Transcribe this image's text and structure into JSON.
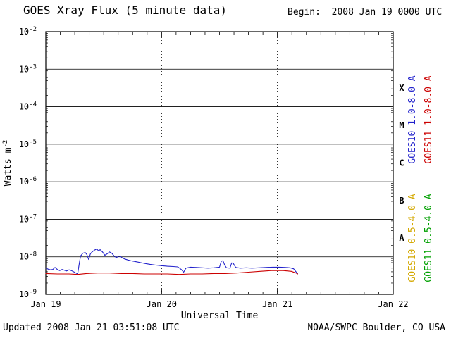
{
  "header": {
    "title": "GOES Xray Flux (5 minute data)",
    "begin_label": "Begin:  2008 Jan 19 0000 UTC"
  },
  "footer": {
    "updated": "Updated 2008 Jan 21 03:51:08 UTC",
    "source": "NOAA/SWPC Boulder, CO USA"
  },
  "colors": {
    "goes10_long": "#2222cc",
    "goes11_long": "#cc0000",
    "goes10_short": "#d4a800",
    "goes11_short": "#00a000",
    "axis": "#000000",
    "background": "#ffffff"
  },
  "chart_data": {
    "type": "line",
    "title": "GOES Xray Flux (5 minute data)",
    "xlabel": "Universal Time",
    "ylabel": "Watts m-2",
    "ylabel_base": "Watts m",
    "ylabel_exponent": "-2",
    "x_range_days": [
      0,
      3
    ],
    "x_ticks": [
      {
        "t": 0,
        "label": "Jan 19"
      },
      {
        "t": 1,
        "label": "Jan 20"
      },
      {
        "t": 2,
        "label": "Jan 21"
      },
      {
        "t": 3,
        "label": "Jan 22"
      }
    ],
    "x_minor_tick_step_days": 0.125,
    "x_day_boundaries_dotted": [
      1,
      2
    ],
    "y_log_range": [
      -9,
      -2
    ],
    "y_tick_exponents": [
      -2,
      -3,
      -4,
      -5,
      -6,
      -7,
      -8,
      -9
    ],
    "grid": {
      "horizontal": "solid-per-decade",
      "vertical": "dotted-at-day-boundaries"
    },
    "flare_classes": [
      {
        "label": "X",
        "center_exponent": -3.5
      },
      {
        "label": "M",
        "center_exponent": -4.5
      },
      {
        "label": "C",
        "center_exponent": -5.5
      },
      {
        "label": "B",
        "center_exponent": -6.5
      },
      {
        "label": "A",
        "center_exponent": -7.5
      }
    ],
    "legend": [
      {
        "label": "GOES10 1.0-8.0 A",
        "color": "#2222cc",
        "satellite": "GOES10",
        "channel": "long"
      },
      {
        "label": "GOES11 1.0-8.0 A",
        "color": "#cc0000",
        "satellite": "GOES11",
        "channel": "long"
      },
      {
        "label": "GOES10 0.5-4.0 A",
        "color": "#d4a800",
        "satellite": "GOES10",
        "channel": "short"
      },
      {
        "label": "GOES11 0.5-4.0 A",
        "color": "#00a000",
        "satellite": "GOES11",
        "channel": "short"
      }
    ],
    "series": [
      {
        "name": "GOES10 1.0-8.0 A",
        "color": "#2222cc",
        "points": [
          [
            0.0,
            5e-09
          ],
          [
            0.02,
            4.7e-09
          ],
          [
            0.04,
            4.5e-09
          ],
          [
            0.06,
            4.6e-09
          ],
          [
            0.08,
            5.2e-09
          ],
          [
            0.1,
            4.6e-09
          ],
          [
            0.12,
            4.3e-09
          ],
          [
            0.14,
            4.6e-09
          ],
          [
            0.16,
            4.4e-09
          ],
          [
            0.18,
            4.2e-09
          ],
          [
            0.2,
            4.5e-09
          ],
          [
            0.22,
            4.3e-09
          ],
          [
            0.24,
            4e-09
          ],
          [
            0.26,
            3.7e-09
          ],
          [
            0.275,
            3.5e-09
          ],
          [
            0.29,
            7e-09
          ],
          [
            0.3,
            1.05e-08
          ],
          [
            0.32,
            1.25e-08
          ],
          [
            0.34,
            1.3e-08
          ],
          [
            0.355,
            1.15e-08
          ],
          [
            0.37,
            8.5e-09
          ],
          [
            0.385,
            1.2e-08
          ],
          [
            0.4,
            1.35e-08
          ],
          [
            0.42,
            1.5e-08
          ],
          [
            0.44,
            1.62e-08
          ],
          [
            0.455,
            1.45e-08
          ],
          [
            0.47,
            1.55e-08
          ],
          [
            0.49,
            1.35e-08
          ],
          [
            0.51,
            1.1e-08
          ],
          [
            0.53,
            1.2e-08
          ],
          [
            0.55,
            1.35e-08
          ],
          [
            0.57,
            1.25e-08
          ],
          [
            0.59,
            1.05e-08
          ],
          [
            0.61,
            9.5e-09
          ],
          [
            0.63,
            1.05e-08
          ],
          [
            0.65,
            9.8e-09
          ],
          [
            0.68,
            8.8e-09
          ],
          [
            0.71,
            8.2e-09
          ],
          [
            0.74,
            7.8e-09
          ],
          [
            0.78,
            7.4e-09
          ],
          [
            0.82,
            7e-09
          ],
          [
            0.86,
            6.6e-09
          ],
          [
            0.9,
            6.3e-09
          ],
          [
            0.95,
            6e-09
          ],
          [
            1.0,
            5.8e-09
          ],
          [
            1.05,
            5.6e-09
          ],
          [
            1.1,
            5.5e-09
          ],
          [
            1.14,
            5.4e-09
          ],
          [
            1.17,
            4.6e-09
          ],
          [
            1.19,
            3.9e-09
          ],
          [
            1.21,
            5e-09
          ],
          [
            1.25,
            5.3e-09
          ],
          [
            1.3,
            5.2e-09
          ],
          [
            1.35,
            5.1e-09
          ],
          [
            1.4,
            5e-09
          ],
          [
            1.45,
            5.1e-09
          ],
          [
            1.5,
            5.3e-09
          ],
          [
            1.515,
            7.6e-09
          ],
          [
            1.53,
            7.9e-09
          ],
          [
            1.545,
            6e-09
          ],
          [
            1.56,
            5.1e-09
          ],
          [
            1.59,
            5e-09
          ],
          [
            1.605,
            6.9e-09
          ],
          [
            1.62,
            6.6e-09
          ],
          [
            1.64,
            5.2e-09
          ],
          [
            1.68,
            5e-09
          ],
          [
            1.73,
            5.1e-09
          ],
          [
            1.78,
            5e-09
          ],
          [
            1.84,
            5.1e-09
          ],
          [
            1.9,
            5.2e-09
          ],
          [
            1.96,
            5.3e-09
          ],
          [
            2.02,
            5.3e-09
          ],
          [
            2.07,
            5.2e-09
          ],
          [
            2.11,
            5.1e-09
          ],
          [
            2.14,
            4.8e-09
          ],
          [
            2.16,
            4e-09
          ],
          [
            2.175,
            3.6e-09
          ]
        ]
      },
      {
        "name": "GOES11 1.0-8.0 A",
        "color": "#cc0000",
        "points": [
          [
            0.0,
            3.6e-09
          ],
          [
            0.1,
            3.5e-09
          ],
          [
            0.2,
            3.5e-09
          ],
          [
            0.275,
            3.4e-09
          ],
          [
            0.35,
            3.6e-09
          ],
          [
            0.45,
            3.7e-09
          ],
          [
            0.55,
            3.7e-09
          ],
          [
            0.65,
            3.6e-09
          ],
          [
            0.75,
            3.6e-09
          ],
          [
            0.85,
            3.5e-09
          ],
          [
            0.95,
            3.5e-09
          ],
          [
            1.05,
            3.5e-09
          ],
          [
            1.15,
            3.4e-09
          ],
          [
            1.25,
            3.5e-09
          ],
          [
            1.35,
            3.5e-09
          ],
          [
            1.45,
            3.6e-09
          ],
          [
            1.55,
            3.6e-09
          ],
          [
            1.65,
            3.7e-09
          ],
          [
            1.75,
            3.9e-09
          ],
          [
            1.85,
            4.1e-09
          ],
          [
            1.95,
            4.3e-09
          ],
          [
            2.05,
            4.3e-09
          ],
          [
            2.12,
            4.1e-09
          ],
          [
            2.16,
            3.7e-09
          ],
          [
            2.175,
            3.5e-09
          ]
        ]
      }
    ]
  }
}
